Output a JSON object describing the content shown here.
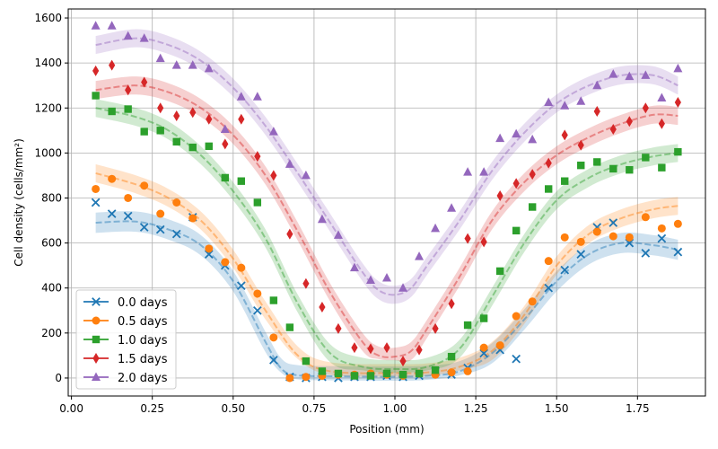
{
  "chart_data": {
    "type": "scatter",
    "title": "",
    "xlabel": "Position (mm)",
    "ylabel": "Cell density (cells/mm²)",
    "xlim": [
      -0.01,
      1.96
    ],
    "ylim": [
      -80,
      1640
    ],
    "xticks": [
      0.0,
      0.25,
      0.5,
      0.75,
      1.0,
      1.25,
      1.5,
      1.75
    ],
    "xtick_labels": [
      "0.00",
      "0.25",
      "0.50",
      "0.75",
      "1.00",
      "1.25",
      "1.50",
      "1.75"
    ],
    "yticks": [
      0,
      200,
      400,
      600,
      800,
      1000,
      1200,
      1400,
      1600
    ],
    "ytick_labels": [
      "0",
      "200",
      "400",
      "600",
      "800",
      "1000",
      "1200",
      "1400",
      "1600"
    ],
    "grid": true,
    "legend_position": "lower-left",
    "x": [
      0.075,
      0.125,
      0.175,
      0.225,
      0.275,
      0.325,
      0.375,
      0.425,
      0.475,
      0.525,
      0.575,
      0.625,
      0.675,
      0.725,
      0.775,
      0.825,
      0.875,
      0.925,
      0.975,
      1.025,
      1.075,
      1.125,
      1.175,
      1.225,
      1.275,
      1.325,
      1.375,
      1.425,
      1.475,
      1.525,
      1.575,
      1.625,
      1.675,
      1.725,
      1.775,
      1.825,
      1.875
    ],
    "series": [
      {
        "name": "0.0 days",
        "color": "#1f77b4",
        "marker": "x",
        "values": [
          780,
          730,
          720,
          670,
          660,
          640,
          715,
          550,
          500,
          410,
          300,
          80,
          5,
          0,
          5,
          0,
          5,
          5,
          10,
          5,
          10,
          30,
          15,
          45,
          110,
          125,
          85,
          null,
          400,
          480,
          550,
          670,
          690,
          600,
          555,
          620,
          560
        ],
        "fit": [
          [
            0.075,
            690
          ],
          [
            0.2,
            695
          ],
          [
            0.3,
            660
          ],
          [
            0.4,
            590
          ],
          [
            0.5,
            430
          ],
          [
            0.6,
            160
          ],
          [
            0.65,
            40
          ],
          [
            0.7,
            12
          ],
          [
            0.8,
            8
          ],
          [
            1.0,
            6
          ],
          [
            1.1,
            10
          ],
          [
            1.2,
            30
          ],
          [
            1.3,
            110
          ],
          [
            1.4,
            260
          ],
          [
            1.5,
            430
          ],
          [
            1.6,
            550
          ],
          [
            1.7,
            600
          ],
          [
            1.8,
            590
          ],
          [
            1.875,
            570
          ]
        ],
        "band": 45
      },
      {
        "name": "0.5 days",
        "color": "#ff7f0e",
        "marker": "circle",
        "values": [
          840,
          885,
          800,
          855,
          730,
          780,
          710,
          575,
          515,
          490,
          375,
          180,
          0,
          5,
          10,
          15,
          15,
          20,
          15,
          10,
          20,
          15,
          25,
          30,
          135,
          145,
          275,
          340,
          520,
          625,
          605,
          650,
          630,
          625,
          715,
          665,
          685
        ],
        "fit": [
          [
            0.075,
            910
          ],
          [
            0.2,
            860
          ],
          [
            0.3,
            800
          ],
          [
            0.4,
            700
          ],
          [
            0.5,
            530
          ],
          [
            0.6,
            300
          ],
          [
            0.7,
            100
          ],
          [
            0.8,
            30
          ],
          [
            1.0,
            22
          ],
          [
            1.1,
            25
          ],
          [
            1.2,
            50
          ],
          [
            1.3,
            120
          ],
          [
            1.4,
            280
          ],
          [
            1.5,
            500
          ],
          [
            1.6,
            640
          ],
          [
            1.7,
            710
          ],
          [
            1.8,
            750
          ],
          [
            1.875,
            765
          ]
        ],
        "band": 40
      },
      {
        "name": "1.0 days",
        "color": "#2ca02c",
        "marker": "square",
        "values": [
          1255,
          1185,
          1195,
          1095,
          1100,
          1050,
          1025,
          1030,
          890,
          875,
          780,
          345,
          225,
          75,
          30,
          20,
          10,
          10,
          20,
          15,
          20,
          35,
          95,
          235,
          265,
          475,
          655,
          760,
          840,
          875,
          945,
          960,
          930,
          925,
          980,
          935,
          1005
        ],
        "fit": [
          [
            0.075,
            1200
          ],
          [
            0.2,
            1160
          ],
          [
            0.3,
            1100
          ],
          [
            0.4,
            990
          ],
          [
            0.5,
            830
          ],
          [
            0.6,
            620
          ],
          [
            0.7,
            330
          ],
          [
            0.8,
            110
          ],
          [
            0.9,
            50
          ],
          [
            1.0,
            40
          ],
          [
            1.1,
            50
          ],
          [
            1.2,
            130
          ],
          [
            1.3,
            360
          ],
          [
            1.4,
            600
          ],
          [
            1.5,
            790
          ],
          [
            1.6,
            890
          ],
          [
            1.7,
            950
          ],
          [
            1.8,
            985
          ],
          [
            1.875,
            1000
          ]
        ],
        "band": 40
      },
      {
        "name": "1.5 days",
        "color": "#d62728",
        "marker": "diamond",
        "values": [
          1365,
          1390,
          1280,
          1315,
          1200,
          1165,
          1180,
          1150,
          1040,
          1150,
          985,
          900,
          640,
          420,
          315,
          220,
          135,
          130,
          135,
          75,
          125,
          220,
          330,
          620,
          605,
          810,
          865,
          905,
          955,
          1080,
          1035,
          1185,
          1105,
          1140,
          1200,
          1130,
          1225
        ],
        "fit": [
          [
            0.075,
            1280
          ],
          [
            0.2,
            1300
          ],
          [
            0.3,
            1270
          ],
          [
            0.4,
            1200
          ],
          [
            0.5,
            1080
          ],
          [
            0.6,
            900
          ],
          [
            0.7,
            650
          ],
          [
            0.8,
            380
          ],
          [
            0.9,
            160
          ],
          [
            0.95,
            100
          ],
          [
            1.0,
            95
          ],
          [
            1.05,
            120
          ],
          [
            1.1,
            220
          ],
          [
            1.2,
            450
          ],
          [
            1.3,
            700
          ],
          [
            1.4,
            870
          ],
          [
            1.5,
            990
          ],
          [
            1.6,
            1070
          ],
          [
            1.7,
            1130
          ],
          [
            1.8,
            1170
          ],
          [
            1.875,
            1165
          ]
        ],
        "band": 40
      },
      {
        "name": "2.0 days",
        "color": "#9467bd",
        "marker": "triangle",
        "values": [
          1565,
          1565,
          1520,
          1510,
          1420,
          1390,
          1390,
          1375,
          1105,
          1250,
          1250,
          1095,
          950,
          900,
          705,
          635,
          490,
          435,
          445,
          400,
          540,
          665,
          755,
          915,
          915,
          1065,
          1085,
          1060,
          1225,
          1210,
          1230,
          1300,
          1350,
          1340,
          1345,
          1245,
          1375
        ],
        "fit": [
          [
            0.075,
            1480
          ],
          [
            0.2,
            1510
          ],
          [
            0.3,
            1480
          ],
          [
            0.4,
            1410
          ],
          [
            0.5,
            1290
          ],
          [
            0.6,
            1120
          ],
          [
            0.7,
            910
          ],
          [
            0.8,
            690
          ],
          [
            0.9,
            470
          ],
          [
            0.95,
            390
          ],
          [
            1.0,
            370
          ],
          [
            1.05,
            400
          ],
          [
            1.1,
            500
          ],
          [
            1.2,
            700
          ],
          [
            1.3,
            920
          ],
          [
            1.4,
            1090
          ],
          [
            1.5,
            1220
          ],
          [
            1.6,
            1300
          ],
          [
            1.7,
            1345
          ],
          [
            1.8,
            1345
          ],
          [
            1.875,
            1300
          ]
        ],
        "band": 40
      }
    ]
  }
}
